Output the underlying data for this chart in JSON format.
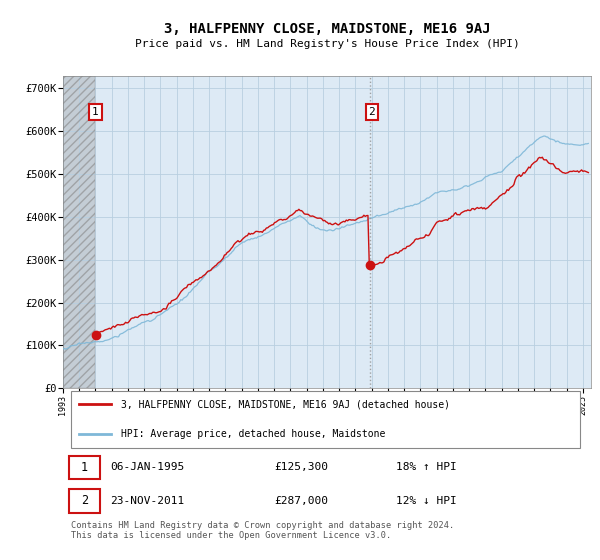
{
  "title": "3, HALFPENNY CLOSE, MAIDSTONE, ME16 9AJ",
  "subtitle": "Price paid vs. HM Land Registry's House Price Index (HPI)",
  "ylim": [
    0,
    730000
  ],
  "yticks": [
    0,
    100000,
    200000,
    300000,
    400000,
    500000,
    600000,
    700000
  ],
  "ytick_labels": [
    "£0",
    "£100K",
    "£200K",
    "£300K",
    "£400K",
    "£500K",
    "£600K",
    "£700K"
  ],
  "xlim_left": 1993.0,
  "xlim_right": 2025.5,
  "sale1_x": 1995.02,
  "sale1_y": 125300,
  "sale2_x": 2011.92,
  "sale2_y": 287000,
  "hatch_start": 1993.0,
  "hatch_end": 1995.0,
  "legend_entry1": "3, HALFPENNY CLOSE, MAIDSTONE, ME16 9AJ (detached house)",
  "legend_entry2": "HPI: Average price, detached house, Maidstone",
  "table_row1": [
    "1",
    "06-JAN-1995",
    "£125,300",
    "18% ↑ HPI"
  ],
  "table_row2": [
    "2",
    "23-NOV-2011",
    "£287,000",
    "12% ↓ HPI"
  ],
  "copyright": "Contains HM Land Registry data © Crown copyright and database right 2024.\nThis data is licensed under the Open Government Licence v3.0.",
  "hpi_color": "#7fb8d8",
  "sold_color": "#cc1111",
  "plot_bg": "#ddeaf5",
  "hatch_bg": "#c8c8c8",
  "grid_color": "#b8cfe0",
  "dashed_line_color": "#aaaaaa",
  "ann_box_edge": "#cc1111",
  "title_fontsize": 10,
  "subtitle_fontsize": 8
}
